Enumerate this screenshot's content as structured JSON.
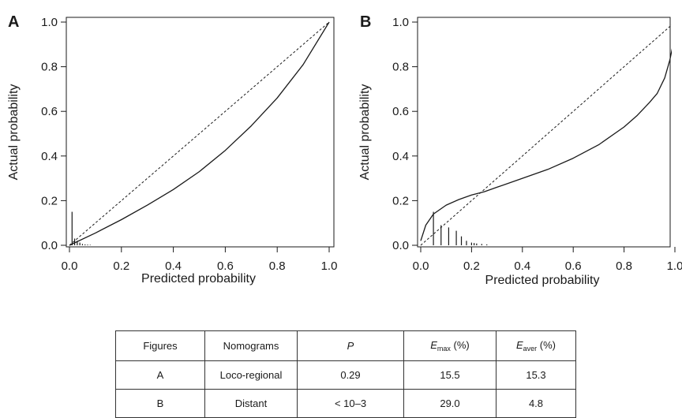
{
  "chart_data": [
    {
      "panel": "A",
      "type": "line",
      "xlabel": "Predicted probability",
      "ylabel": "Actual probability",
      "xlim": [
        0.0,
        1.0
      ],
      "ylim": [
        0.0,
        1.0
      ],
      "xticks": [
        "0.0",
        "0.2",
        "0.4",
        "0.6",
        "0.8",
        "1.0"
      ],
      "yticks": [
        "0.0",
        "0.2",
        "0.4",
        "0.6",
        "0.8",
        "1.0"
      ],
      "grid": false,
      "series": [
        {
          "style": "dashed",
          "x": [
            0.0,
            1.0
          ],
          "y": [
            0.0,
            1.0
          ]
        },
        {
          "style": "solid",
          "x": [
            0.0,
            0.1,
            0.2,
            0.3,
            0.4,
            0.5,
            0.6,
            0.7,
            0.8,
            0.9,
            1.0
          ],
          "y": [
            0.0,
            0.055,
            0.115,
            0.18,
            0.25,
            0.33,
            0.425,
            0.535,
            0.66,
            0.81,
            1.0
          ]
        }
      ],
      "rug": {
        "x": [
          0.01,
          0.02,
          0.03,
          0.04,
          0.05,
          0.06,
          0.07,
          0.08
        ],
        "y": [
          0.15,
          0.03,
          0.02,
          0.012,
          0.006,
          0.004,
          0.003,
          0.002
        ]
      }
    },
    {
      "panel": "B",
      "type": "line",
      "xlabel": "Predicted probability",
      "ylabel": "Actual probability",
      "xlim": [
        0.0,
        1.0
      ],
      "ylim": [
        0.0,
        1.0
      ],
      "xticks": [
        "0.0",
        "0.2",
        "0.4",
        "0.6",
        "0.8",
        "1.0"
      ],
      "yticks": [
        "0.0",
        "0.2",
        "0.4",
        "0.6",
        "0.8",
        "1.0"
      ],
      "grid": false,
      "series": [
        {
          "style": "dashed",
          "x": [
            0.0,
            1.0
          ],
          "y": [
            0.0,
            1.0
          ]
        },
        {
          "style": "solid",
          "x": [
            0.0,
            0.02,
            0.05,
            0.1,
            0.15,
            0.2,
            0.25,
            0.3,
            0.4,
            0.5,
            0.6,
            0.7,
            0.8,
            0.85,
            0.9,
            0.93,
            0.96,
            0.98,
            1.0
          ],
          "y": [
            0.02,
            0.09,
            0.14,
            0.18,
            0.205,
            0.225,
            0.24,
            0.26,
            0.3,
            0.34,
            0.39,
            0.45,
            0.53,
            0.58,
            0.64,
            0.68,
            0.75,
            0.83,
            0.94
          ]
        }
      ],
      "rug": {
        "x": [
          0.05,
          0.08,
          0.11,
          0.14,
          0.16,
          0.18,
          0.2,
          0.21,
          0.22,
          0.24,
          0.26
        ],
        "y": [
          0.15,
          0.09,
          0.08,
          0.065,
          0.04,
          0.02,
          0.012,
          0.01,
          0.008,
          0.006,
          0.004
        ]
      }
    }
  ],
  "table": {
    "headers": {
      "figures": "Figures",
      "nomograms": "Nomograms",
      "p": "P",
      "emax_main": "E",
      "emax_sub": "max",
      "emax_unit": " (%)",
      "eaver_main": "E",
      "eaver_sub": "aver",
      "eaver_unit": " (%)"
    },
    "rows": [
      [
        "A",
        "Loco-regional",
        "0.29",
        "15.5",
        "15.3"
      ],
      [
        "B",
        "Distant",
        "< 10–3",
        "29.0",
        "4.8"
      ]
    ]
  }
}
